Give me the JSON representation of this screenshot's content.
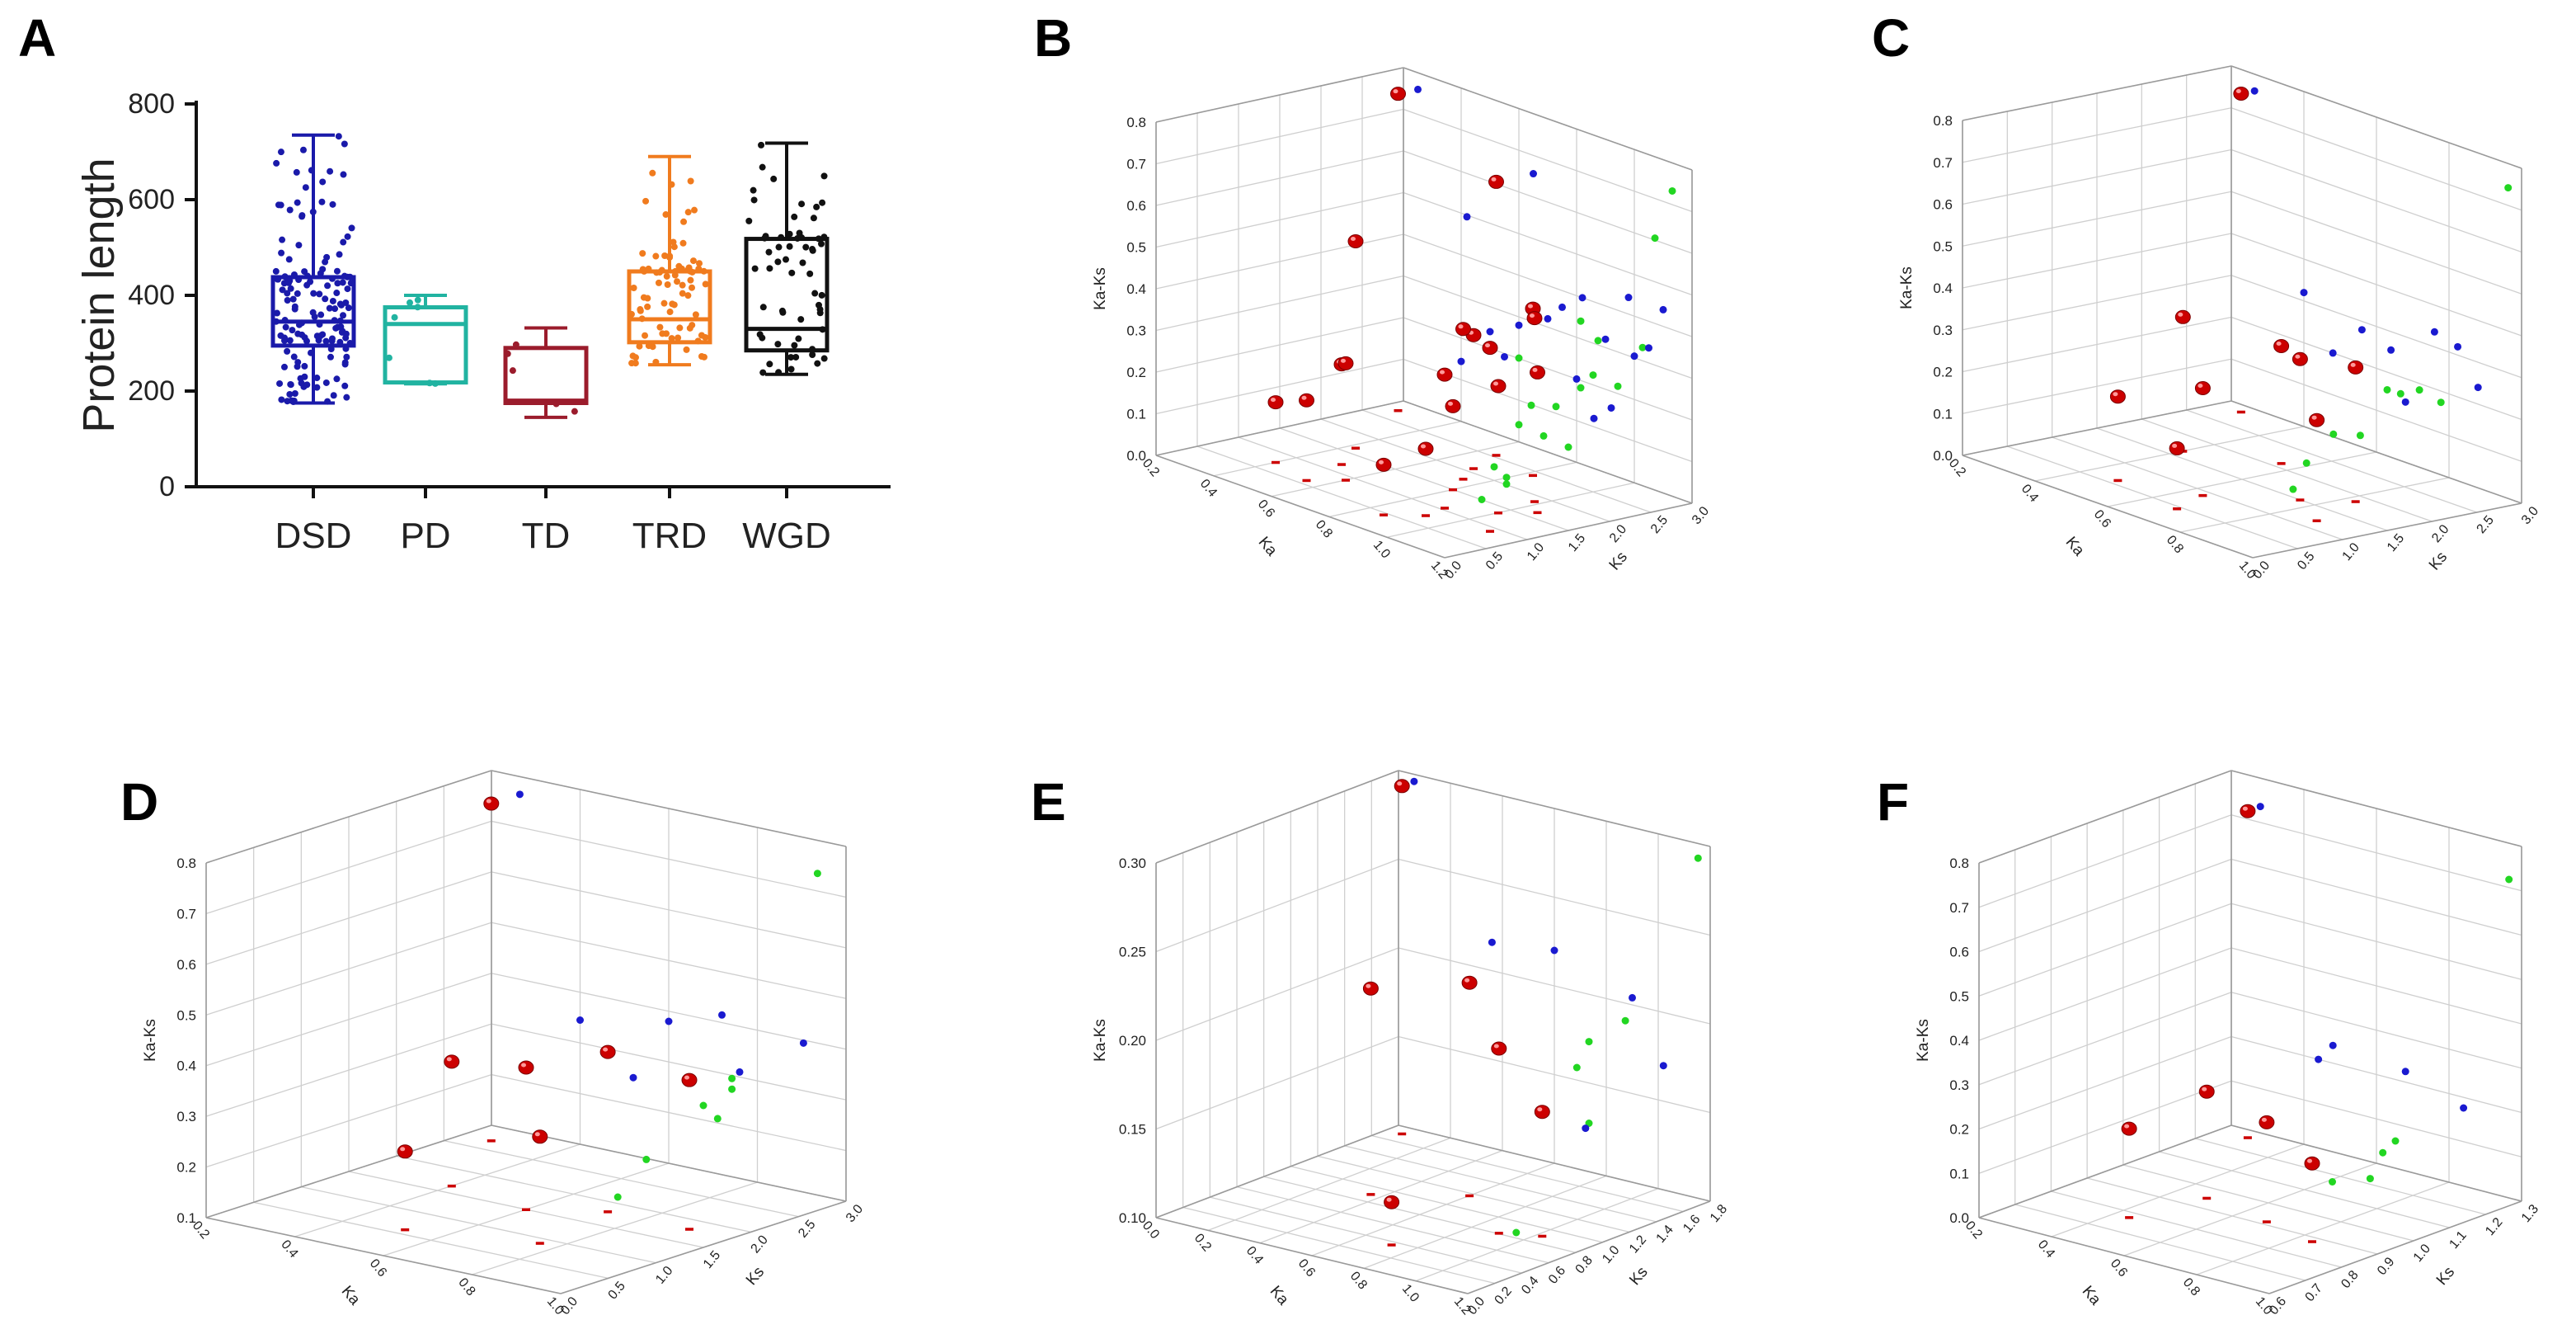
{
  "panels": {
    "A": {
      "letter": "A"
    },
    "B": {
      "letter": "B"
    },
    "C": {
      "letter": "C"
    },
    "D": {
      "letter": "D"
    },
    "E": {
      "letter": "E"
    },
    "F": {
      "letter": "F"
    }
  },
  "colors": {
    "DSD": "#1a1aaa",
    "PD": "#21b3a1",
    "TD": "#9b1c2c",
    "TRD": "#f07b1e",
    "WGD": "#111111",
    "blue_point": "#1a1ad0",
    "green_point": "#22d622",
    "red_sphere": "#cc0000",
    "grid": "#cfcfcf"
  },
  "chart_data": [
    {
      "id": "A",
      "type": "box",
      "ylabel": "Protein length",
      "ylim": [
        0,
        800
      ],
      "yticks": [
        0,
        200,
        400,
        600,
        800
      ],
      "categories": [
        "DSD",
        "PD",
        "TD",
        "TRD",
        "WGD"
      ],
      "boxes": [
        {
          "name": "DSD",
          "min": 175,
          "q1": 295,
          "median": 345,
          "q3": 438,
          "max": 735
        },
        {
          "name": "PD",
          "min": 215,
          "q1": 218,
          "median": 340,
          "q3": 375,
          "max": 400
        },
        {
          "name": "TD",
          "min": 145,
          "q1": 175,
          "median": 180,
          "q3": 290,
          "max": 332
        },
        {
          "name": "TRD",
          "min": 255,
          "q1": 302,
          "median": 350,
          "q3": 450,
          "max": 690
        },
        {
          "name": "WGD",
          "min": 235,
          "q1": 285,
          "median": 330,
          "q3": 518,
          "max": 718
        }
      ],
      "point_counts": {
        "DSD": 150,
        "PD": 7,
        "TD": 5,
        "TRD": 80,
        "WGD": 60
      }
    },
    {
      "id": "B",
      "type": "scatter3d",
      "zlabel": "Ka-Ks",
      "xlabel": "Ka",
      "ylabel": "Ks",
      "zticks": [
        "0.0",
        "0.1",
        "0.2",
        "0.3",
        "0.4",
        "0.5",
        "0.6",
        "0.7",
        "0.8"
      ],
      "xticks": [
        "0.2",
        "0.4",
        "0.6",
        "0.8",
        "1.0",
        "1.2"
      ],
      "yticks": [
        "0.0",
        "0.5",
        "1.0",
        "1.5",
        "2.0",
        "2.5",
        "3.0"
      ]
    },
    {
      "id": "C",
      "type": "scatter3d",
      "zlabel": "Ka-Ks",
      "xlabel": "Ka",
      "ylabel": "Ks",
      "zticks": [
        "0.0",
        "0.1",
        "0.2",
        "0.3",
        "0.4",
        "0.5",
        "0.6",
        "0.7",
        "0.8"
      ],
      "xticks": [
        "0.2",
        "0.4",
        "0.6",
        "0.8",
        "1.0"
      ],
      "yticks": [
        "0.0",
        "0.5",
        "1.0",
        "1.5",
        "2.0",
        "2.5",
        "3.0"
      ]
    },
    {
      "id": "D",
      "type": "scatter3d",
      "zlabel": "Ka-Ks",
      "xlabel": "Ka",
      "ylabel": "Ks",
      "zticks": [
        "0.1",
        "0.2",
        "0.3",
        "0.4",
        "0.5",
        "0.6",
        "0.7",
        "0.8"
      ],
      "xticks": [
        "0.2",
        "0.4",
        "0.6",
        "0.8",
        "1.0"
      ],
      "yticks": [
        "0.0",
        "0.5",
        "1.0",
        "1.5",
        "2.0",
        "2.5",
        "3.0"
      ]
    },
    {
      "id": "E",
      "type": "scatter3d",
      "zlabel": "Ka-Ks",
      "xlabel": "Ka",
      "ylabel": "Ks",
      "zticks": [
        "0.10",
        "0.15",
        "0.20",
        "0.25",
        "0.30"
      ],
      "xticks": [
        "0.0",
        "0.2",
        "0.4",
        "0.6",
        "0.8",
        "1.0",
        "1.2"
      ],
      "yticks": [
        "0.0",
        "0.2",
        "0.4",
        "0.6",
        "0.8",
        "1.0",
        "1.2",
        "1.4",
        "1.6",
        "1.8"
      ]
    },
    {
      "id": "F",
      "type": "scatter3d",
      "zlabel": "Ka-Ks",
      "xlabel": "Ka",
      "ylabel": "Ks",
      "zticks": [
        "0.0",
        "0.1",
        "0.2",
        "0.3",
        "0.4",
        "0.5",
        "0.6",
        "0.7",
        "0.8"
      ],
      "xticks": [
        "0.2",
        "0.4",
        "0.6",
        "0.8",
        "1.0"
      ],
      "yticks": [
        "0.6",
        "0.7",
        "0.8",
        "0.9",
        "1.0",
        "1.1",
        "1.2",
        "1.3"
      ]
    }
  ]
}
